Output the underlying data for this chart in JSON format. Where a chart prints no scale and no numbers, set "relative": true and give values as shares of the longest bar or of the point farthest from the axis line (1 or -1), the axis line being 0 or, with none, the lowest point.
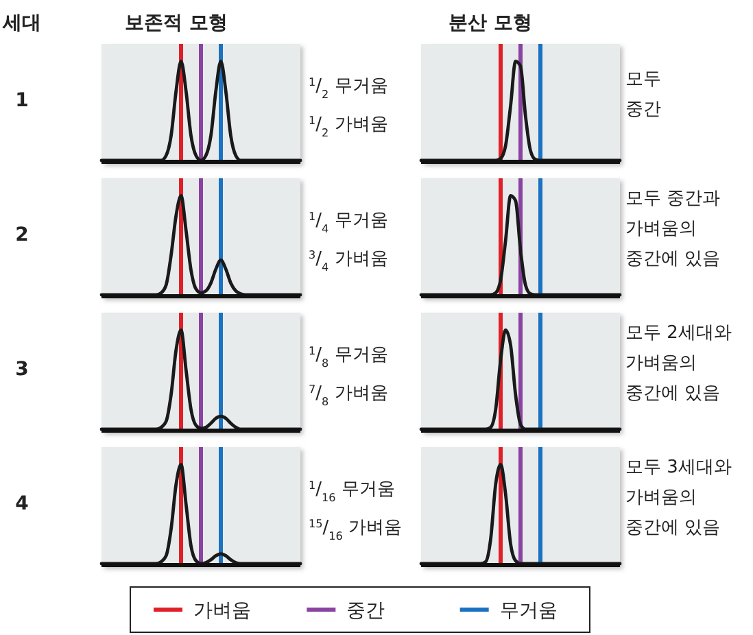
{
  "chart_data": [
    {
      "type": "line",
      "title": "보존적 모형",
      "subtitle": "세대",
      "ylabel": "1",
      "relative": true,
      "categories": [
        null,
        null,
        null,
        null,
        null,
        null,
        null,
        null,
        null,
        null,
        null,
        null,
        null,
        null,
        null,
        null,
        null,
        null,
        null,
        null,
        null,
        null,
        null,
        null,
        null,
        null,
        null,
        null,
        null,
        null,
        null,
        null,
        null,
        null,
        null,
        null,
        null,
        null,
        null,
        null,
        null
      ],
      "series": [
        {
          "color": "#1a1a1a",
          "values": [
            0,
            0,
            0,
            0,
            0,
            0,
            0,
            0,
            0,
            0,
            0,
            0,
            0,
            0.05,
            0.25,
            0.7,
            1,
            0.7,
            0.25,
            0.05,
            0,
            0.05,
            0.25,
            0.7,
            1,
            0.7,
            0.25,
            0.05,
            0,
            0,
            0,
            0,
            0,
            0,
            0,
            0,
            0,
            0,
            0,
            0,
            0
          ]
        }
      ],
      "annotations": [
        "$^{1}$/$_{2}$ 무거움",
        "$^{1}$/$_{2}$ 가벼움"
      ]
    },
    {
      "type": "line",
      "title": "분산 모형",
      "relative": true,
      "categories": [
        null,
        null,
        null,
        null,
        null,
        null,
        null,
        null,
        null,
        null,
        null,
        null,
        null,
        null,
        null,
        null,
        null,
        null,
        null,
        null,
        null,
        null,
        null,
        null,
        null,
        null,
        null,
        null,
        null,
        null,
        null,
        null,
        null,
        null,
        null,
        null,
        null,
        null,
        null,
        null,
        null
      ],
      "series": [
        {
          "color": "#1a1a1a",
          "values": [
            0,
            0,
            0,
            0,
            0,
            0,
            0,
            0,
            0,
            0,
            0,
            0,
            0,
            0,
            0,
            0,
            0.02,
            0.15,
            0.55,
            1,
            0.95,
            0.45,
            0.1,
            0.01,
            0,
            0,
            0,
            0,
            0,
            0,
            0,
            0,
            0,
            0,
            0,
            0,
            0,
            0,
            0,
            0,
            0
          ]
        }
      ],
      "annotations": [
        "모두",
        "중간"
      ]
    },
    {
      "type": "line",
      "ylabel": "2",
      "relative": true,
      "categories": [
        null,
        null,
        null,
        null,
        null,
        null,
        null,
        null,
        null,
        null,
        null,
        null,
        null,
        null,
        null,
        null,
        null,
        null,
        null,
        null,
        null,
        null,
        null,
        null,
        null,
        null,
        null,
        null,
        null,
        null,
        null,
        null,
        null,
        null,
        null,
        null,
        null,
        null,
        null,
        null,
        null
      ],
      "series": [
        {
          "color": "#1a1a1a",
          "values": [
            0,
            0,
            0,
            0,
            0,
            0,
            0,
            0,
            0,
            0,
            0,
            0,
            0.02,
            0.1,
            0.4,
            0.8,
            1,
            0.65,
            0.25,
            0.06,
            0.02,
            0.04,
            0.12,
            0.26,
            0.35,
            0.26,
            0.12,
            0.04,
            0.01,
            0,
            0,
            0,
            0,
            0,
            0,
            0,
            0,
            0,
            0,
            0,
            0
          ]
        }
      ],
      "annotations": [
        "$^{1}$/$_{4}$ 무거움",
        "$^{3}$/$_{4}$ 가벼움"
      ]
    },
    {
      "type": "line",
      "relative": true,
      "categories": [
        null,
        null,
        null,
        null,
        null,
        null,
        null,
        null,
        null,
        null,
        null,
        null,
        null,
        null,
        null,
        null,
        null,
        null,
        null,
        null,
        null,
        null,
        null,
        null,
        null,
        null,
        null,
        null,
        null,
        null,
        null,
        null,
        null,
        null,
        null,
        null,
        null,
        null,
        null,
        null,
        null
      ],
      "series": [
        {
          "color": "#1a1a1a",
          "values": [
            0,
            0,
            0,
            0,
            0,
            0,
            0,
            0,
            0,
            0,
            0,
            0,
            0,
            0,
            0,
            0.02,
            0.15,
            0.55,
            1,
            0.95,
            0.45,
            0.1,
            0.01,
            0,
            0,
            0,
            0,
            0,
            0,
            0,
            0,
            0,
            0,
            0,
            0,
            0,
            0,
            0,
            0,
            0,
            0
          ]
        }
      ],
      "annotations": [
        "모두 중간과",
        "가벼움의",
        "중간에 있음"
      ]
    },
    {
      "type": "line",
      "ylabel": "3",
      "relative": true,
      "categories": [
        null,
        null,
        null,
        null,
        null,
        null,
        null,
        null,
        null,
        null,
        null,
        null,
        null,
        null,
        null,
        null,
        null,
        null,
        null,
        null,
        null,
        null,
        null,
        null,
        null,
        null,
        null,
        null,
        null,
        null,
        null,
        null,
        null,
        null,
        null,
        null,
        null,
        null,
        null,
        null,
        null
      ],
      "series": [
        {
          "color": "#1a1a1a",
          "values": [
            0,
            0,
            0,
            0,
            0,
            0,
            0,
            0,
            0,
            0,
            0,
            0,
            0.02,
            0.08,
            0.35,
            0.8,
            1,
            0.6,
            0.2,
            0.04,
            0.01,
            0.02,
            0.06,
            0.11,
            0.13,
            0.11,
            0.06,
            0.02,
            0,
            0,
            0,
            0,
            0,
            0,
            0,
            0,
            0,
            0,
            0,
            0,
            0
          ]
        }
      ],
      "annotations": [
        "$^{1}$/$_{8}$ 무거움",
        "$^{7}$/$_{8}$ 가벼움"
      ]
    },
    {
      "type": "line",
      "relative": true,
      "categories": [
        null,
        null,
        null,
        null,
        null,
        null,
        null,
        null,
        null,
        null,
        null,
        null,
        null,
        null,
        null,
        null,
        null,
        null,
        null,
        null,
        null,
        null,
        null,
        null,
        null,
        null,
        null,
        null,
        null,
        null,
        null,
        null,
        null,
        null,
        null,
        null,
        null,
        null,
        null,
        null,
        null
      ],
      "series": [
        {
          "color": "#1a1a1a",
          "values": [
            0,
            0,
            0,
            0,
            0,
            0,
            0,
            0,
            0,
            0,
            0,
            0,
            0,
            0,
            0.02,
            0.2,
            0.7,
            1,
            0.85,
            0.35,
            0.05,
            0,
            0,
            0,
            0,
            0,
            0,
            0,
            0,
            0,
            0,
            0,
            0,
            0,
            0,
            0,
            0,
            0,
            0,
            0,
            0
          ]
        }
      ],
      "annotations": [
        "모두 2세대와",
        "가벼움의",
        "중간에 있음"
      ]
    },
    {
      "type": "line",
      "ylabel": "4",
      "relative": true,
      "categories": [
        null,
        null,
        null,
        null,
        null,
        null,
        null,
        null,
        null,
        null,
        null,
        null,
        null,
        null,
        null,
        null,
        null,
        null,
        null,
        null,
        null,
        null,
        null,
        null,
        null,
        null,
        null,
        null,
        null,
        null,
        null,
        null,
        null,
        null,
        null,
        null,
        null,
        null,
        null,
        null,
        null
      ],
      "series": [
        {
          "color": "#1a1a1a",
          "values": [
            0,
            0,
            0,
            0,
            0,
            0,
            0,
            0,
            0,
            0,
            0,
            0,
            0.02,
            0.08,
            0.35,
            0.8,
            1,
            0.6,
            0.18,
            0.03,
            0,
            0.01,
            0.04,
            0.08,
            0.1,
            0.08,
            0.04,
            0.01,
            0,
            0,
            0,
            0,
            0,
            0,
            0,
            0,
            0,
            0,
            0,
            0,
            0
          ]
        }
      ],
      "annotations": [
        "$^{1}$/$_{16}$ 무거움",
        "$^{15}$/$_{16}$ 가벼움"
      ]
    },
    {
      "type": "line",
      "relative": true,
      "categories": [
        null,
        null,
        null,
        null,
        null,
        null,
        null,
        null,
        null,
        null,
        null,
        null,
        null,
        null,
        null,
        null,
        null,
        null,
        null,
        null,
        null,
        null,
        null,
        null,
        null,
        null,
        null,
        null,
        null,
        null,
        null,
        null,
        null,
        null,
        null,
        null,
        null,
        null,
        null,
        null,
        null
      ],
      "series": [
        {
          "color": "#1a1a1a",
          "values": [
            0,
            0,
            0,
            0,
            0,
            0,
            0,
            0,
            0,
            0,
            0,
            0,
            0,
            0.02,
            0.25,
            0.8,
            1,
            0.7,
            0.2,
            0.03,
            0,
            0,
            0,
            0,
            0,
            0,
            0,
            0,
            0,
            0,
            0,
            0,
            0,
            0,
            0,
            0,
            0,
            0,
            0,
            0,
            0
          ]
        }
      ],
      "annotations": [
        "모두 3세대와",
        "가벼움의",
        "중간에 있음"
      ]
    },
    {
      "type": "other",
      "categories": [
        "가벼움",
        "중간",
        "무거움"
      ],
      "colors": [
        "#e02027",
        "#8a43a0",
        "#1b72c0"
      ]
    }
  ]
}
